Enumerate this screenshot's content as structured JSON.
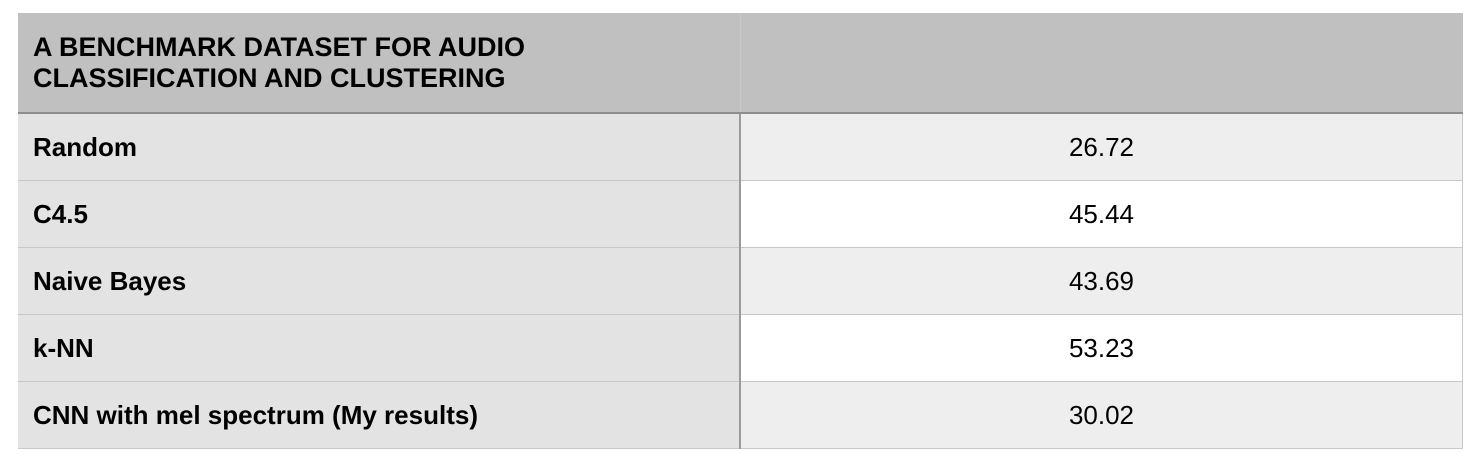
{
  "table": {
    "title": "A BENCHMARK DATASET FOR AUDIO CLASSIFICATION AND CLUSTERING",
    "header_value": "",
    "rows": [
      {
        "method": "Random",
        "value": "26.72"
      },
      {
        "method": "C4.5",
        "value": "45.44"
      },
      {
        "method": "Naive Bayes",
        "value": "43.69"
      },
      {
        "method": "k-NN",
        "value": "53.23"
      },
      {
        "method": "CNN with mel spectrum (My results)",
        "value": "30.02"
      }
    ]
  }
}
